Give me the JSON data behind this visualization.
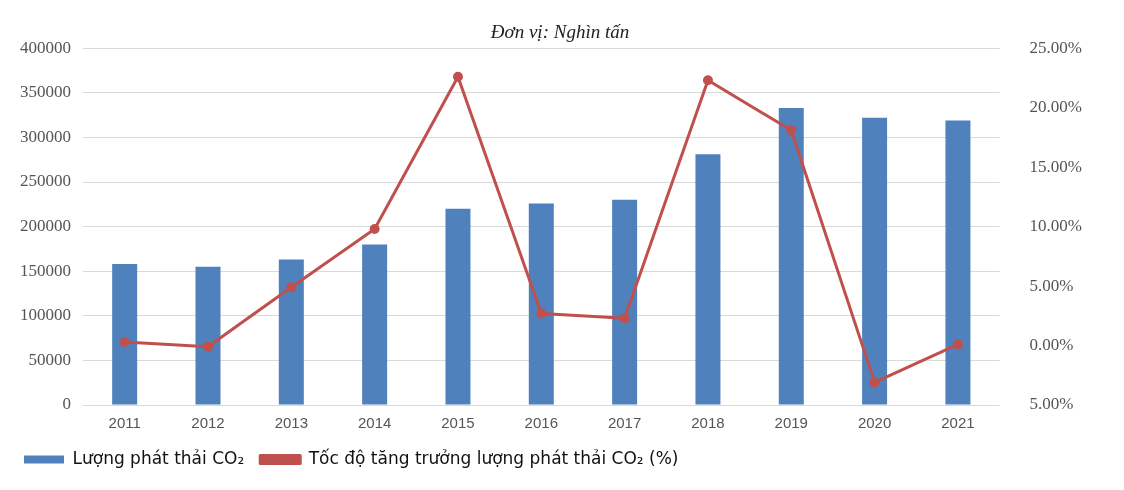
{
  "chart_data": {
    "type": "bar",
    "title": "Đơn vị: Nghìn tấn",
    "categories": [
      "2011",
      "2012",
      "2013",
      "2014",
      "2015",
      "2016",
      "2017",
      "2018",
      "2019",
      "2020",
      "2021"
    ],
    "series": [
      {
        "name": "Lượng phát thải CO₂",
        "color": "#4f81bd",
        "values": [
          158000,
          155000,
          163000,
          180000,
          220000,
          226000,
          230000,
          281000,
          333000,
          322000,
          319000
        ]
      },
      {
        "name": "Tốc độ tăng trưởng lượng phát thải CO₂ (%)",
        "type": "line",
        "axis": "y2",
        "color": "#c0504d",
        "marker": "circle",
        "values": [
          0.3,
          -0.1,
          4.9,
          9.8,
          22.6,
          2.7,
          2.3,
          22.3,
          18.1,
          -3.1,
          0.1
        ]
      }
    ],
    "ylim": [
      0,
      400000
    ],
    "yticks": [
      0,
      50000,
      100000,
      150000,
      200000,
      250000,
      300000,
      350000,
      400000
    ],
    "y2lim": [
      -5,
      25
    ],
    "y2ticks": [
      {
        "value": -5,
        "label": "5.00%"
      },
      {
        "value": 0,
        "label": "0.00%"
      },
      {
        "value": 5,
        "label": "5.00%"
      },
      {
        "value": 10,
        "label": "10.00%"
      },
      {
        "value": 15,
        "label": "15.00%"
      },
      {
        "value": 20,
        "label": "20.00%"
      },
      {
        "value": 25,
        "label": "25.00%"
      }
    ],
    "grid": "y",
    "legend": "bottom"
  }
}
